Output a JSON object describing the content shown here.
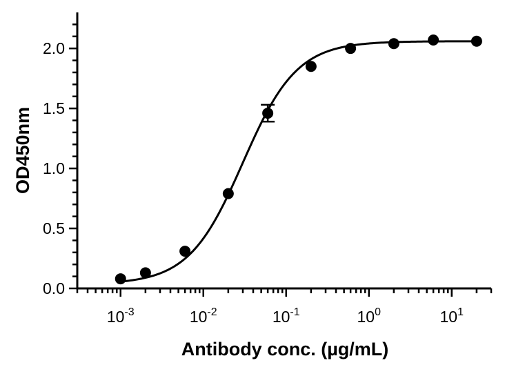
{
  "chart_data": {
    "type": "scatter",
    "title": "",
    "xlabel": "Antibody conc. (µg/mL)",
    "ylabel": "OD450nm",
    "x_scale": "log10",
    "xlim": [
      0.0003,
      30
    ],
    "ylim": [
      0,
      2.3
    ],
    "x_tick_labels": [
      {
        "base": "10",
        "exp": "-3"
      },
      {
        "base": "10",
        "exp": "-2"
      },
      {
        "base": "10",
        "exp": "-1"
      },
      {
        "base": "10",
        "exp": "0"
      },
      {
        "base": "10",
        "exp": "1"
      }
    ],
    "y_tick_labels": [
      "0.0",
      "0.5",
      "1.0",
      "1.5",
      "2.0"
    ],
    "grid": false,
    "series": [
      {
        "x": [
          0.001,
          0.002,
          0.006,
          0.02,
          0.06,
          0.2,
          0.6,
          2,
          6,
          20
        ],
        "y": [
          0.08,
          0.13,
          0.31,
          0.79,
          1.46,
          1.85,
          2.0,
          2.04,
          2.07,
          2.06
        ],
        "error": [
          0,
          0,
          0,
          0,
          0.07,
          0,
          0,
          0,
          0,
          0
        ],
        "color": "#000000",
        "marker": "circle",
        "fit_curve": "four-parameter logistic"
      }
    ]
  }
}
